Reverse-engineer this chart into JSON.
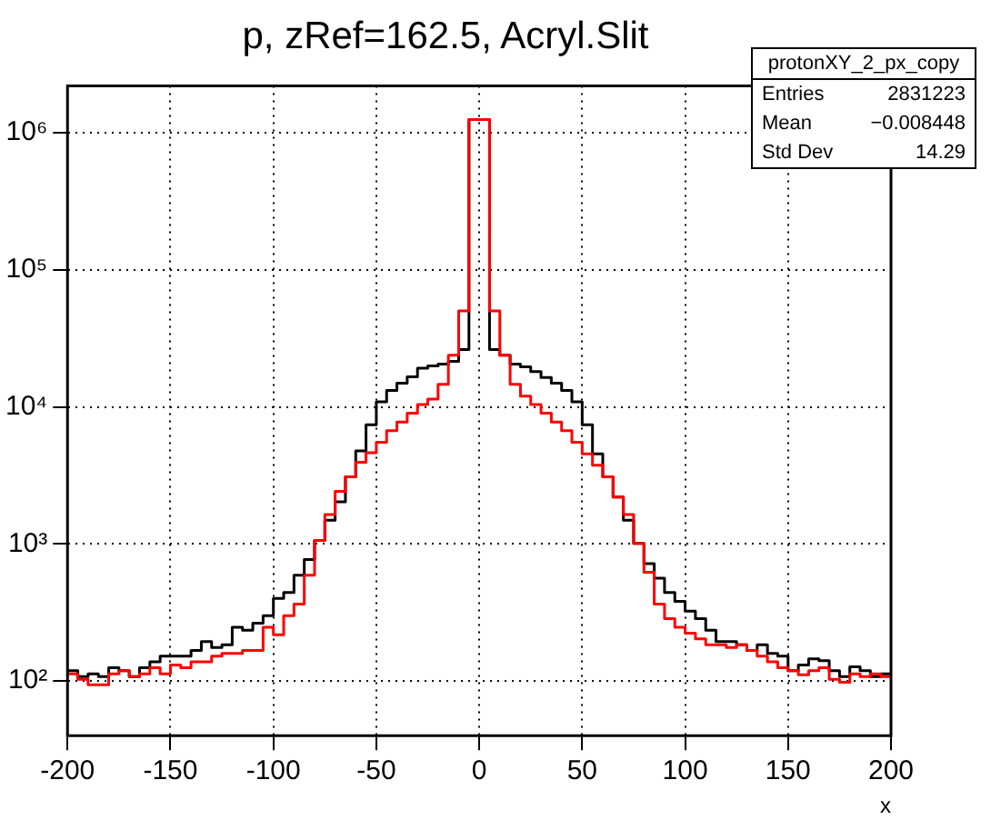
{
  "chart_data": {
    "type": "histogram",
    "title": "p, zRef=162.5, Acryl.Slit",
    "xlabel": "x",
    "bins": [
      -200,
      -195,
      -190,
      -185,
      -180,
      -175,
      -170,
      -165,
      -160,
      -155,
      -150,
      -145,
      -140,
      -135,
      -130,
      -125,
      -120,
      -115,
      -110,
      -105,
      -100,
      -95,
      -90,
      -85,
      -80,
      -75,
      -70,
      -65,
      -60,
      -55,
      -50,
      -45,
      -40,
      -35,
      -30,
      -25,
      -20,
      -15,
      -10,
      -5,
      0,
      5,
      10,
      15,
      20,
      25,
      30,
      35,
      40,
      45,
      50,
      55,
      60,
      65,
      70,
      75,
      80,
      85,
      90,
      95,
      100,
      105,
      110,
      115,
      120,
      125,
      130,
      135,
      140,
      145,
      150,
      155,
      160,
      165,
      170,
      175,
      180,
      185,
      190,
      195,
      200
    ],
    "series": [
      {
        "color": "#000000",
        "values": [
          119,
          108,
          113,
          108,
          125,
          119,
          108,
          125,
          138,
          152,
          152,
          152,
          167,
          194,
          176,
          184,
          247,
          235,
          264,
          300,
          401,
          442,
          592,
          769,
          1060,
          1490,
          2030,
          3090,
          4780,
          7400,
          10900,
          13200,
          14900,
          16600,
          19200,
          19900,
          20500,
          21500,
          26200,
          1250000,
          1250000,
          26200,
          23800,
          20500,
          19600,
          18100,
          16400,
          14900,
          13200,
          10900,
          7400,
          4550,
          3090,
          2200,
          1490,
          1010,
          719,
          564,
          442,
          382,
          324,
          286,
          235,
          194,
          194,
          184,
          167,
          184,
          159,
          152,
          119,
          131,
          145,
          141,
          119,
          108,
          127,
          119,
          108,
          113
        ]
      },
      {
        "color": "#ff0000",
        "values": [
          113,
          103,
          94,
          94,
          113,
          119,
          108,
          113,
          125,
          113,
          131,
          125,
          138,
          138,
          152,
          159,
          159,
          167,
          167,
          247,
          218,
          300,
          364,
          592,
          1060,
          1640,
          2420,
          3090,
          3940,
          4640,
          5530,
          6710,
          7770,
          8990,
          10400,
          11400,
          14600,
          23800,
          50100,
          1250000,
          1250000,
          50100,
          23800,
          14600,
          12000,
          10400,
          8990,
          7770,
          6710,
          5530,
          4550,
          3750,
          3090,
          2200,
          1640,
          1010,
          621,
          364,
          286,
          247,
          224,
          203,
          184,
          184,
          176,
          184,
          167,
          152,
          138,
          125,
          119,
          111,
          119,
          125,
          103,
          98,
          113,
          108,
          113,
          108
        ]
      }
    ],
    "xlim": [
      -200,
      200
    ],
    "xticks": [
      -200,
      -150,
      -100,
      -50,
      0,
      50,
      100,
      150,
      200
    ],
    "ylim": [
      40,
      2200000
    ],
    "yticks": [
      {
        "value": 100,
        "label": "10²"
      },
      {
        "value": 1000,
        "label": "10³"
      },
      {
        "value": 10000,
        "label": "10⁴"
      },
      {
        "value": 100000,
        "label": "10⁵"
      },
      {
        "value": 1000000,
        "label": "10⁶"
      }
    ],
    "log": "y",
    "grid": true,
    "legend": false,
    "annotations": [
      "protonXY_2_px_copy",
      "Entries",
      "2831223",
      "Mean",
      "−0.008448",
      "Std Dev",
      "14.29"
    ]
  }
}
